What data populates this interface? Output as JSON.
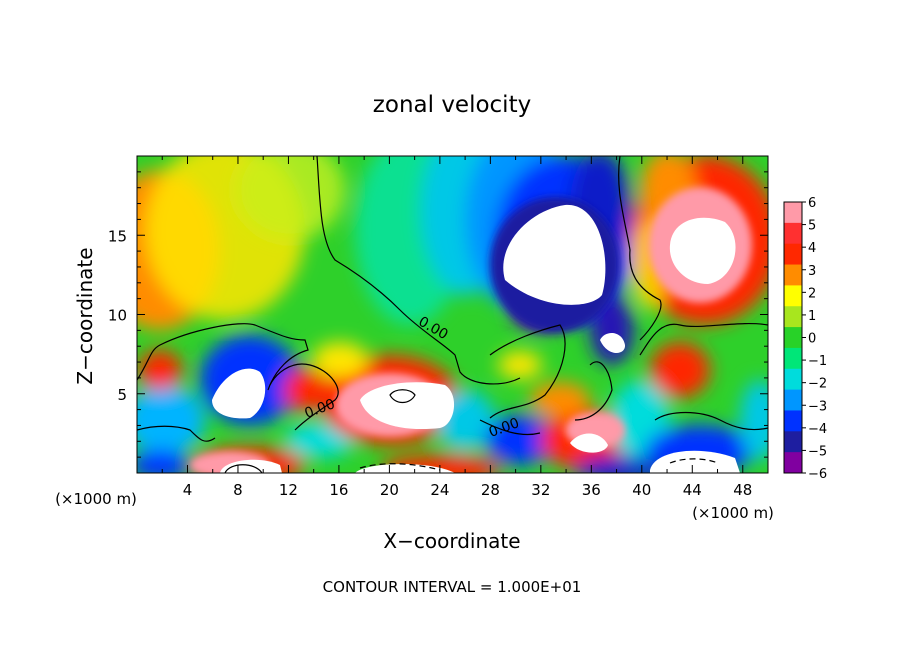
{
  "chart_data": {
    "type": "heatmap",
    "title": "zonal velocity",
    "xlabel": "X−coordinate",
    "ylabel": "Z−coordinate",
    "x_unit_left": "(×1000 m)",
    "x_unit_right": "(×1000 m)",
    "footer": "CONTOUR INTERVAL = 1.000E+01",
    "xlim": [
      0,
      50
    ],
    "ylim": [
      0,
      20
    ],
    "x_ticks": [
      4,
      8,
      12,
      16,
      20,
      24,
      28,
      32,
      36,
      40,
      44,
      48
    ],
    "x_tick_labels": [
      "4",
      "8",
      "12",
      "16",
      "20",
      "24",
      "28",
      "32",
      "36",
      "40",
      "44",
      "48"
    ],
    "y_ticks": [
      5,
      10,
      15
    ],
    "y_tick_labels": [
      "5",
      "10",
      "15"
    ],
    "colorbar": {
      "min": -6,
      "max": 6,
      "labels": [
        "6",
        "5",
        "4",
        "3",
        "2",
        "1",
        "0",
        "−1",
        "−2",
        "−3",
        "−4",
        "−5",
        "−6"
      ],
      "colors": [
        "#ff9aa8",
        "#ff3030",
        "#ff2800",
        "#ff8c00",
        "#ffff00",
        "#a8e61e",
        "#28d228",
        "#00e678",
        "#00dcdc",
        "#0096ff",
        "#0032ff",
        "#1e1ea0",
        "#8000a0"
      ]
    },
    "contour_labels": [
      {
        "text": "0.00",
        "x": 14.6,
        "y": 3.8
      },
      {
        "text": "0.00",
        "x": 29.2,
        "y": 2.6
      },
      {
        "text": "0.00",
        "x": 23.3,
        "y": 8.9
      }
    ]
  }
}
